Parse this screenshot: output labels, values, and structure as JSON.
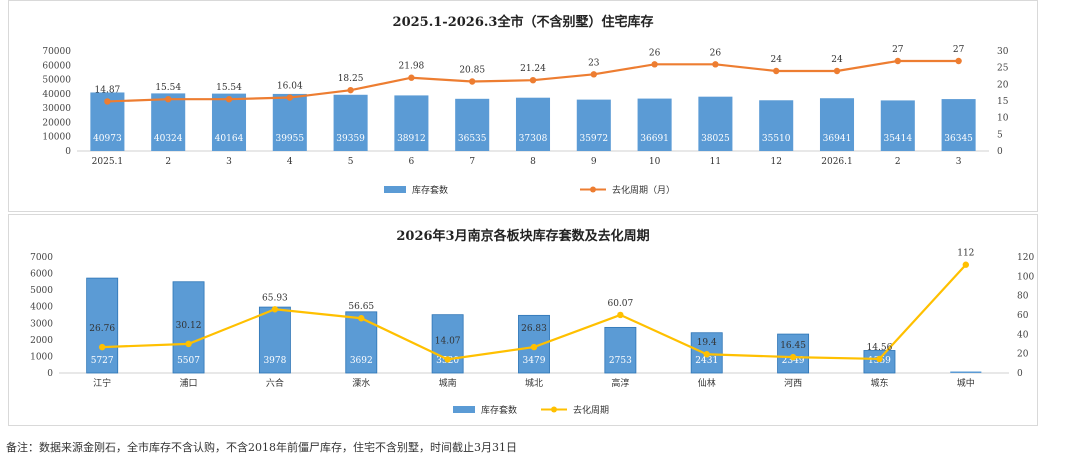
{
  "chart_data": [
    {
      "type": "bar+line",
      "title": "2025.1-2026.3全市（不含别墅）住宅库存",
      "categories": [
        "2025.1",
        "2",
        "3",
        "4",
        "5",
        "6",
        "7",
        "8",
        "9",
        "10",
        "11",
        "12",
        "2026.1",
        "2",
        "3"
      ],
      "series": [
        {
          "name": "库存套数",
          "type": "bar",
          "axis": "left",
          "values": [
            40973,
            40324,
            40164,
            39955,
            39359,
            38912,
            36535,
            37308,
            35972,
            36691,
            38025,
            35510,
            36941,
            35414,
            36345
          ]
        },
        {
          "name": "去化周期（月）",
          "type": "line",
          "axis": "right",
          "values": [
            14.87,
            15.54,
            15.54,
            16.04,
            18.25,
            21.98,
            20.85,
            21.24,
            23,
            26,
            26,
            24,
            24,
            27,
            27
          ]
        }
      ],
      "y_left": {
        "min": 0,
        "max": 70000,
        "ticks": [
          0,
          10000,
          20000,
          30000,
          40000,
          50000,
          60000,
          70000
        ]
      },
      "y_right": {
        "min": 0,
        "max": 30,
        "ticks": [
          0,
          5,
          10,
          15,
          20,
          25,
          30
        ]
      },
      "colors": {
        "bar": "#5b9bd5",
        "line": "#ed7d31"
      },
      "legend": "bottom"
    },
    {
      "type": "bar+line",
      "title": "2026年3月南京各板块库存套数及去化周期",
      "categories": [
        "江宁",
        "浦口",
        "六合",
        "溧水",
        "城南",
        "城北",
        "高淳",
        "仙林",
        "河西",
        "城东",
        "城中"
      ],
      "series": [
        {
          "name": "库存套数",
          "type": "bar",
          "axis": "left",
          "values": [
            5727,
            5507,
            3978,
            3692,
            3520,
            3479,
            2753,
            2431,
            2349,
            1359,
            null
          ],
          "labels": [
            "5727",
            "5507",
            "3978",
            "3692",
            "3520",
            "3479",
            "2753",
            "2431",
            "2349",
            "1359",
            ""
          ]
        },
        {
          "name": "去化周期",
          "type": "line",
          "axis": "right",
          "values": [
            26.76,
            30.12,
            65.93,
            56.65,
            14.07,
            26.83,
            60.07,
            19.4,
            16.45,
            14.56,
            112
          ]
        }
      ],
      "y_left": {
        "min": 0,
        "max": 7000,
        "ticks": [
          0,
          1000,
          2000,
          3000,
          4000,
          5000,
          6000,
          7000
        ]
      },
      "y_right": {
        "min": 0,
        "max": 120,
        "ticks": [
          0,
          20,
          40,
          60,
          80,
          100,
          120
        ]
      },
      "colors": {
        "bar": "#5b9bd5",
        "line": "#ffc000"
      },
      "legend": "bottom"
    }
  ],
  "footnote": "备注：数据来源金刚石，全市库存不含认购，不含2018年前僵尸库存，住宅不含别墅，时间截止3月31日"
}
